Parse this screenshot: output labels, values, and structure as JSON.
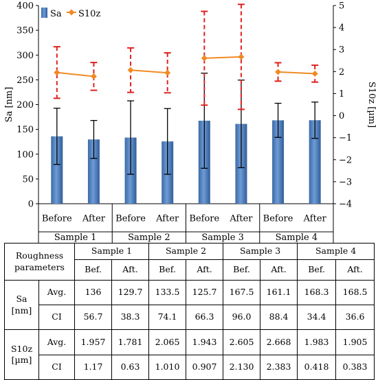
{
  "chart_data": {
    "type": "bar",
    "title": "",
    "ylabel": "Sa [nm]",
    "y2label": "S10z [µm]",
    "ylim": [
      0,
      400
    ],
    "y2lim": [
      -4,
      5
    ],
    "yticks": [
      0,
      50,
      100,
      150,
      200,
      250,
      300,
      350,
      400
    ],
    "y2ticks": [
      -4,
      -3,
      -2,
      -1,
      0,
      1,
      2,
      3,
      4,
      5
    ],
    "groups": [
      "Sample 1",
      "Sample 2",
      "Sample 3",
      "Sample 4"
    ],
    "categories": [
      "Before",
      "After",
      "Before",
      "After",
      "Before",
      "After",
      "Before",
      "After"
    ],
    "legend": {
      "placement": "top-left",
      "bar_label": "Sa",
      "line_label": "S10z"
    },
    "grid": false,
    "colors": {
      "bar": "#4f81bd",
      "line": "#f08a24",
      "errorbar_line": "#e02020",
      "errorbar_bar": "#000000"
    },
    "series": [
      {
        "name": "Sa",
        "type": "bar",
        "axis": "left",
        "values": [
          136,
          129.7,
          133.5,
          125.7,
          167.5,
          161.1,
          168.3,
          168.5
        ],
        "error": [
          56.7,
          38.3,
          74.1,
          66.3,
          96.0,
          88.4,
          34.4,
          36.6
        ]
      },
      {
        "name": "S10z",
        "type": "line",
        "axis": "right",
        "values": [
          1.957,
          1.781,
          2.065,
          1.943,
          2.605,
          2.668,
          1.983,
          1.905
        ],
        "error": [
          1.17,
          0.63,
          1.01,
          0.907,
          2.13,
          2.383,
          0.418,
          0.383
        ]
      }
    ]
  },
  "table": {
    "corner_line1": "Roughness",
    "corner_line2": "parameters",
    "samples": [
      "Sample 1",
      "Sample 2",
      "Sample 3",
      "Sample 4"
    ],
    "sub": [
      "Bef.",
      "Aft."
    ],
    "rows": [
      {
        "param_line1": "Sa",
        "param_line2": "[nm]",
        "stat": "Avg.",
        "cells": [
          "136",
          "129.7",
          "133.5",
          "125.7",
          "167.5",
          "161.1",
          "168.3",
          "168.5"
        ]
      },
      {
        "stat": "CI",
        "cells": [
          "56.7",
          "38.3",
          "74.1",
          "66.3",
          "96.0",
          "88.4",
          "34.4",
          "36.6"
        ]
      },
      {
        "param_line1": "S10z",
        "param_line2": "[µm]",
        "stat": "Avg.",
        "cells": [
          "1.957",
          "1.781",
          "2.065",
          "1.943",
          "2.605",
          "2.668",
          "1.983",
          "1.905"
        ]
      },
      {
        "stat": "CI",
        "cells": [
          "1.17",
          "0.63",
          "1.010",
          "0.907",
          "2.130",
          "2.383",
          "0.418",
          "0.383"
        ]
      }
    ]
  }
}
